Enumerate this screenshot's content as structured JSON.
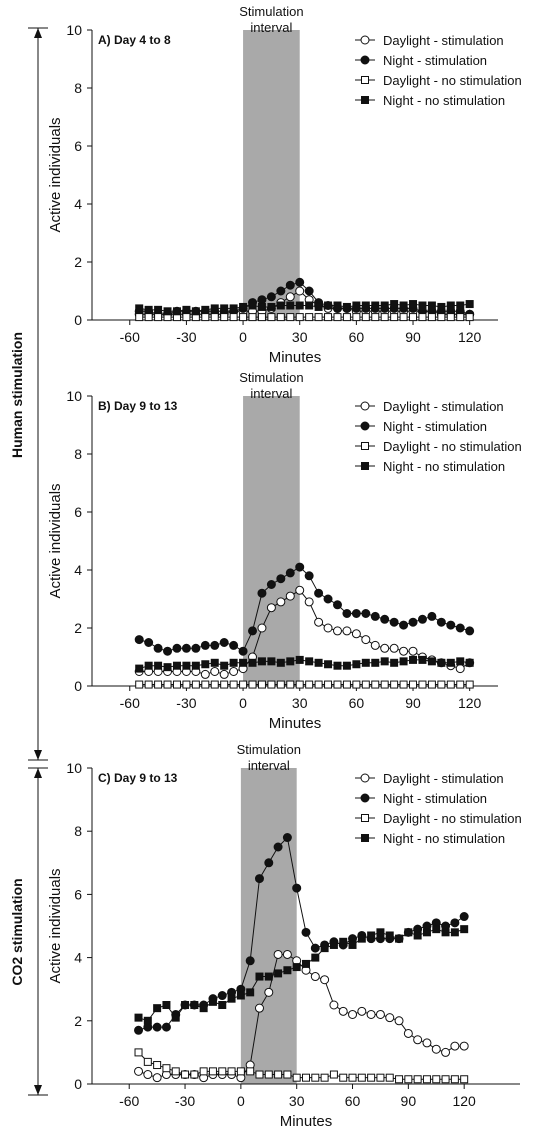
{
  "figure": {
    "group_labels": [
      "Human stimulation",
      "CO2 stimulation"
    ],
    "stimulation_label_line1": "Stimulation",
    "stimulation_label_line2": "interval"
  },
  "chart_data": [
    {
      "type": "line",
      "title": "A) Day 4 to 8",
      "xlabel": "Minutes",
      "ylabel": "Active individuals",
      "xlim": [
        -80,
        135
      ],
      "ylim": [
        0,
        10
      ],
      "xticks": [
        -60,
        -30,
        0,
        30,
        60,
        90,
        120
      ],
      "yticks": [
        0,
        2,
        4,
        6,
        8,
        10
      ],
      "shaded_interval": [
        0,
        30
      ],
      "legend_position": "top-right",
      "series": [
        {
          "name": "Daylight - stimulation",
          "marker": "open-circle",
          "line": true,
          "x": [
            -55,
            -50,
            -45,
            -40,
            -35,
            -30,
            -25,
            -20,
            -15,
            -10,
            -5,
            0,
            5,
            10,
            15,
            20,
            25,
            30,
            35,
            40,
            45,
            50,
            55,
            60,
            65,
            70,
            75,
            80,
            85,
            90,
            95,
            100,
            105,
            110,
            115,
            120
          ],
          "y": [
            0.2,
            0.2,
            0.2,
            0.2,
            0.2,
            0.2,
            0.2,
            0.2,
            0.2,
            0.2,
            0.3,
            0.3,
            0.3,
            0.3,
            0.4,
            0.6,
            0.8,
            1.0,
            0.7,
            0.5,
            0.4,
            0.4,
            0.4,
            0.3,
            0.3,
            0.3,
            0.3,
            0.3,
            0.3,
            0.3,
            0.3,
            0.3,
            0.2,
            0.2,
            0.2,
            0.2
          ]
        },
        {
          "name": "Night - stimulation",
          "marker": "filled-circle",
          "line": true,
          "x": [
            -55,
            -50,
            -45,
            -40,
            -35,
            -30,
            -25,
            -20,
            -15,
            -10,
            -5,
            0,
            5,
            10,
            15,
            20,
            25,
            30,
            35,
            40,
            45,
            50,
            55,
            60,
            65,
            70,
            75,
            80,
            85,
            90,
            95,
            100,
            105,
            110,
            115,
            120
          ],
          "y": [
            0.3,
            0.3,
            0.2,
            0.2,
            0.3,
            0.3,
            0.3,
            0.3,
            0.3,
            0.3,
            0.3,
            0.4,
            0.6,
            0.7,
            0.8,
            1.0,
            1.2,
            1.3,
            1.0,
            0.6,
            0.5,
            0.4,
            0.4,
            0.4,
            0.4,
            0.4,
            0.4,
            0.4,
            0.4,
            0.4,
            0.3,
            0.3,
            0.3,
            0.3,
            0.3,
            0.2
          ]
        },
        {
          "name": "Daylight - no stimulation",
          "marker": "open-square",
          "line": true,
          "x": [
            -55,
            -50,
            -45,
            -40,
            -35,
            -30,
            -25,
            -20,
            -15,
            -10,
            -5,
            0,
            5,
            10,
            15,
            20,
            25,
            30,
            35,
            40,
            45,
            50,
            55,
            60,
            65,
            70,
            75,
            80,
            85,
            90,
            95,
            100,
            105,
            110,
            115,
            120
          ],
          "y": [
            0.1,
            0.1,
            0.1,
            0.1,
            0.1,
            0.1,
            0.1,
            0.1,
            0.1,
            0.1,
            0.1,
            0.1,
            0.1,
            0.1,
            0.1,
            0.1,
            0.1,
            0.1,
            0.1,
            0.1,
            0.1,
            0.1,
            0.1,
            0.1,
            0.1,
            0.1,
            0.1,
            0.1,
            0.1,
            0.1,
            0.1,
            0.1,
            0.1,
            0.1,
            0.1,
            0.1
          ]
        },
        {
          "name": "Night - no stimulation",
          "marker": "filled-square",
          "line": true,
          "x": [
            -55,
            -50,
            -45,
            -40,
            -35,
            -30,
            -25,
            -20,
            -15,
            -10,
            -5,
            0,
            5,
            10,
            15,
            20,
            25,
            30,
            35,
            40,
            45,
            50,
            55,
            60,
            65,
            70,
            75,
            80,
            85,
            90,
            95,
            100,
            105,
            110,
            115,
            120
          ],
          "y": [
            0.4,
            0.35,
            0.35,
            0.3,
            0.3,
            0.35,
            0.3,
            0.35,
            0.4,
            0.4,
            0.4,
            0.45,
            0.5,
            0.45,
            0.45,
            0.5,
            0.5,
            0.5,
            0.5,
            0.45,
            0.5,
            0.5,
            0.45,
            0.5,
            0.5,
            0.5,
            0.5,
            0.55,
            0.5,
            0.55,
            0.5,
            0.5,
            0.45,
            0.5,
            0.5,
            0.55
          ]
        }
      ]
    },
    {
      "type": "line",
      "title": "B) Day 9 to 13",
      "xlabel": "Minutes",
      "ylabel": "Active individuals",
      "xlim": [
        -80,
        135
      ],
      "ylim": [
        0,
        10
      ],
      "xticks": [
        -60,
        -30,
        0,
        30,
        60,
        90,
        120
      ],
      "yticks": [
        0,
        2,
        4,
        6,
        8,
        10
      ],
      "shaded_interval": [
        0,
        30
      ],
      "legend_position": "top-right",
      "series": [
        {
          "name": "Daylight - stimulation",
          "marker": "open-circle",
          "line": true,
          "x": [
            -55,
            -50,
            -45,
            -40,
            -35,
            -30,
            -25,
            -20,
            -15,
            -10,
            -5,
            0,
            5,
            10,
            15,
            20,
            25,
            30,
            35,
            40,
            45,
            50,
            55,
            60,
            65,
            70,
            75,
            80,
            85,
            90,
            95,
            100,
            105,
            110,
            115,
            120
          ],
          "y": [
            0.5,
            0.5,
            0.5,
            0.5,
            0.5,
            0.5,
            0.5,
            0.4,
            0.5,
            0.4,
            0.5,
            0.6,
            1.0,
            2.0,
            2.7,
            2.9,
            3.1,
            3.3,
            2.9,
            2.2,
            2.0,
            1.9,
            1.9,
            1.8,
            1.6,
            1.4,
            1.3,
            1.3,
            1.2,
            1.2,
            1.0,
            0.9,
            0.8,
            0.7,
            0.6,
            0.8
          ]
        },
        {
          "name": "Night - stimulation",
          "marker": "filled-circle",
          "line": true,
          "x": [
            -55,
            -50,
            -45,
            -40,
            -35,
            -30,
            -25,
            -20,
            -15,
            -10,
            -5,
            0,
            5,
            10,
            15,
            20,
            25,
            30,
            35,
            40,
            45,
            50,
            55,
            60,
            65,
            70,
            75,
            80,
            85,
            90,
            95,
            100,
            105,
            110,
            115,
            120
          ],
          "y": [
            1.6,
            1.5,
            1.3,
            1.2,
            1.3,
            1.3,
            1.3,
            1.4,
            1.4,
            1.5,
            1.4,
            1.2,
            1.9,
            3.2,
            3.5,
            3.7,
            3.9,
            4.1,
            3.8,
            3.2,
            3.0,
            2.8,
            2.5,
            2.5,
            2.5,
            2.4,
            2.3,
            2.2,
            2.1,
            2.2,
            2.3,
            2.4,
            2.2,
            2.1,
            2.0,
            1.9
          ]
        },
        {
          "name": "Daylight - no stimulation",
          "marker": "open-square",
          "line": true,
          "x": [
            -55,
            -50,
            -45,
            -40,
            -35,
            -30,
            -25,
            -20,
            -15,
            -10,
            -5,
            0,
            5,
            10,
            15,
            20,
            25,
            30,
            35,
            40,
            45,
            50,
            55,
            60,
            65,
            70,
            75,
            80,
            85,
            90,
            95,
            100,
            105,
            110,
            115,
            120
          ],
          "y": [
            0.05,
            0.05,
            0.05,
            0.05,
            0.05,
            0.05,
            0.05,
            0.05,
            0.05,
            0.05,
            0.05,
            0.05,
            0.05,
            0.05,
            0.05,
            0.05,
            0.05,
            0.05,
            0.05,
            0.05,
            0.05,
            0.05,
            0.05,
            0.05,
            0.05,
            0.05,
            0.05,
            0.05,
            0.05,
            0.05,
            0.05,
            0.05,
            0.05,
            0.05,
            0.05,
            0.05
          ]
        },
        {
          "name": "Night - no stimulation",
          "marker": "filled-square",
          "line": true,
          "x": [
            -55,
            -50,
            -45,
            -40,
            -35,
            -30,
            -25,
            -20,
            -15,
            -10,
            -5,
            0,
            5,
            10,
            15,
            20,
            25,
            30,
            35,
            40,
            45,
            50,
            55,
            60,
            65,
            70,
            75,
            80,
            85,
            90,
            95,
            100,
            105,
            110,
            115,
            120
          ],
          "y": [
            0.6,
            0.7,
            0.7,
            0.65,
            0.7,
            0.7,
            0.7,
            0.75,
            0.8,
            0.7,
            0.8,
            0.8,
            0.8,
            0.85,
            0.85,
            0.8,
            0.85,
            0.9,
            0.85,
            0.8,
            0.75,
            0.7,
            0.7,
            0.75,
            0.8,
            0.8,
            0.85,
            0.8,
            0.85,
            0.9,
            0.9,
            0.85,
            0.8,
            0.8,
            0.85,
            0.8
          ]
        }
      ]
    },
    {
      "type": "line",
      "title": "C) Day 9 to 13",
      "xlabel": "Minutes",
      "ylabel": "Active individuals",
      "xlim": [
        -80,
        150
      ],
      "ylim": [
        0,
        10
      ],
      "xticks": [
        -60,
        -30,
        0,
        30,
        60,
        90,
        120
      ],
      "yticks": [
        0,
        2,
        4,
        6,
        8,
        10
      ],
      "shaded_interval": [
        0,
        30
      ],
      "legend_position": "top-right",
      "series": [
        {
          "name": "Daylight - stimulation",
          "marker": "open-circle",
          "line": true,
          "x": [
            -55,
            -50,
            -45,
            -40,
            -35,
            -30,
            -25,
            -20,
            -15,
            -10,
            -5,
            0,
            5,
            10,
            15,
            20,
            25,
            30,
            35,
            40,
            45,
            50,
            55,
            60,
            65,
            70,
            75,
            80,
            85,
            90,
            95,
            100,
            105,
            110,
            115,
            120
          ],
          "y": [
            0.4,
            0.3,
            0.2,
            0.3,
            0.3,
            0.3,
            0.3,
            0.2,
            0.3,
            0.3,
            0.3,
            0.2,
            0.6,
            2.4,
            2.9,
            4.1,
            4.1,
            3.9,
            3.6,
            3.4,
            3.3,
            2.5,
            2.3,
            2.2,
            2.3,
            2.2,
            2.2,
            2.1,
            2.0,
            1.6,
            1.4,
            1.3,
            1.1,
            1.0,
            1.2,
            1.2
          ]
        },
        {
          "name": "Night - stimulation",
          "marker": "filled-circle",
          "line": true,
          "x": [
            -55,
            -50,
            -45,
            -40,
            -35,
            -30,
            -25,
            -20,
            -15,
            -10,
            -5,
            0,
            5,
            10,
            15,
            20,
            25,
            30,
            35,
            40,
            45,
            50,
            55,
            60,
            65,
            70,
            75,
            80,
            85,
            90,
            95,
            100,
            105,
            110,
            115,
            120
          ],
          "y": [
            1.7,
            1.8,
            1.8,
            1.8,
            2.2,
            2.5,
            2.5,
            2.5,
            2.7,
            2.8,
            2.9,
            3.0,
            3.9,
            6.5,
            7.0,
            7.5,
            7.8,
            6.2,
            4.8,
            4.3,
            4.4,
            4.5,
            4.4,
            4.6,
            4.7,
            4.6,
            4.6,
            4.6,
            4.6,
            4.8,
            4.9,
            5.0,
            5.1,
            5.0,
            5.1,
            5.3
          ]
        },
        {
          "name": "Daylight - no stimulation",
          "marker": "open-square",
          "line": true,
          "x": [
            -55,
            -50,
            -45,
            -40,
            -35,
            -30,
            -25,
            -20,
            -15,
            -10,
            -5,
            0,
            5,
            10,
            15,
            20,
            25,
            30,
            35,
            40,
            45,
            50,
            55,
            60,
            65,
            70,
            75,
            80,
            85,
            90,
            95,
            100,
            105,
            110,
            115,
            120
          ],
          "y": [
            1.0,
            0.7,
            0.6,
            0.5,
            0.4,
            0.3,
            0.3,
            0.4,
            0.4,
            0.4,
            0.4,
            0.4,
            0.4,
            0.3,
            0.3,
            0.3,
            0.3,
            0.2,
            0.2,
            0.2,
            0.2,
            0.3,
            0.2,
            0.2,
            0.2,
            0.2,
            0.2,
            0.2,
            0.15,
            0.15,
            0.15,
            0.15,
            0.15,
            0.15,
            0.15,
            0.15
          ]
        },
        {
          "name": "Night - no stimulation",
          "marker": "filled-square",
          "line": true,
          "x": [
            -55,
            -50,
            -45,
            -40,
            -35,
            -30,
            -25,
            -20,
            -15,
            -10,
            -5,
            0,
            5,
            10,
            15,
            20,
            25,
            30,
            35,
            40,
            45,
            50,
            55,
            60,
            65,
            70,
            75,
            80,
            85,
            90,
            95,
            100,
            105,
            110,
            115,
            120
          ],
          "y": [
            2.1,
            2.0,
            2.4,
            2.5,
            2.1,
            2.5,
            2.5,
            2.4,
            2.6,
            2.5,
            2.7,
            2.8,
            2.9,
            3.4,
            3.4,
            3.5,
            3.6,
            3.7,
            3.8,
            4.0,
            4.3,
            4.4,
            4.5,
            4.4,
            4.6,
            4.7,
            4.8,
            4.7,
            4.6,
            4.8,
            4.7,
            4.8,
            4.9,
            4.8,
            4.8,
            4.9
          ]
        }
      ]
    }
  ]
}
